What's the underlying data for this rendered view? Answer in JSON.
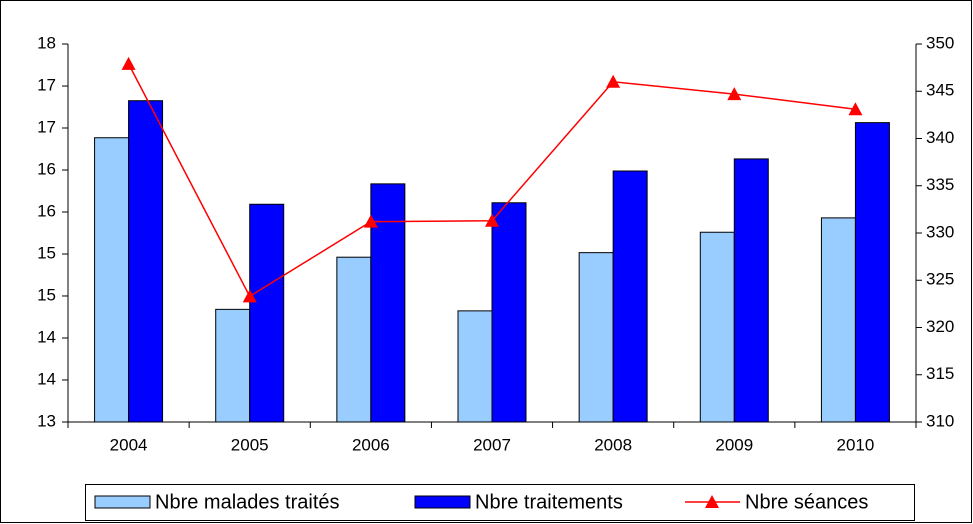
{
  "chart_data": {
    "type": "bar",
    "categories": [
      "2004",
      "2005",
      "2006",
      "2007",
      "2008",
      "2009",
      "2010"
    ],
    "series": [
      {
        "name": "Nbre malades traités",
        "color": "#99ccff",
        "type": "bar",
        "values": [
          16.76,
          14.49,
          15.18,
          14.47,
          15.24,
          15.51,
          15.7
        ]
      },
      {
        "name": "Nbre traitements",
        "color": "#0000ff",
        "type": "bar",
        "values": [
          17.25,
          15.88,
          16.15,
          15.9,
          16.32,
          16.48,
          16.96
        ]
      },
      {
        "name": "Nbre séances",
        "color": "#ff0000",
        "type": "line",
        "axis": "y2",
        "values": [
          347.9,
          323.3,
          331.2,
          331.3,
          346.0,
          344.7,
          343.1
        ]
      }
    ],
    "ylim": [
      13,
      18
    ],
    "yticks": [
      13,
      {
        "value": 13.556,
        "label": "14"
      },
      {
        "value": 14.111,
        "label": "14"
      },
      {
        "value": 14.667,
        "label": "15"
      },
      {
        "value": 15.222,
        "label": "15"
      },
      {
        "value": 15.778,
        "label": "16"
      },
      {
        "value": 16.333,
        "label": "16"
      },
      {
        "value": 16.889,
        "label": "17"
      },
      {
        "value": 17.444,
        "label": "17"
      },
      18
    ],
    "y2lim": [
      310,
      350
    ],
    "y2ticks": [
      310,
      315,
      320,
      325,
      330,
      335,
      340,
      345,
      350
    ],
    "legend": "bottom"
  }
}
